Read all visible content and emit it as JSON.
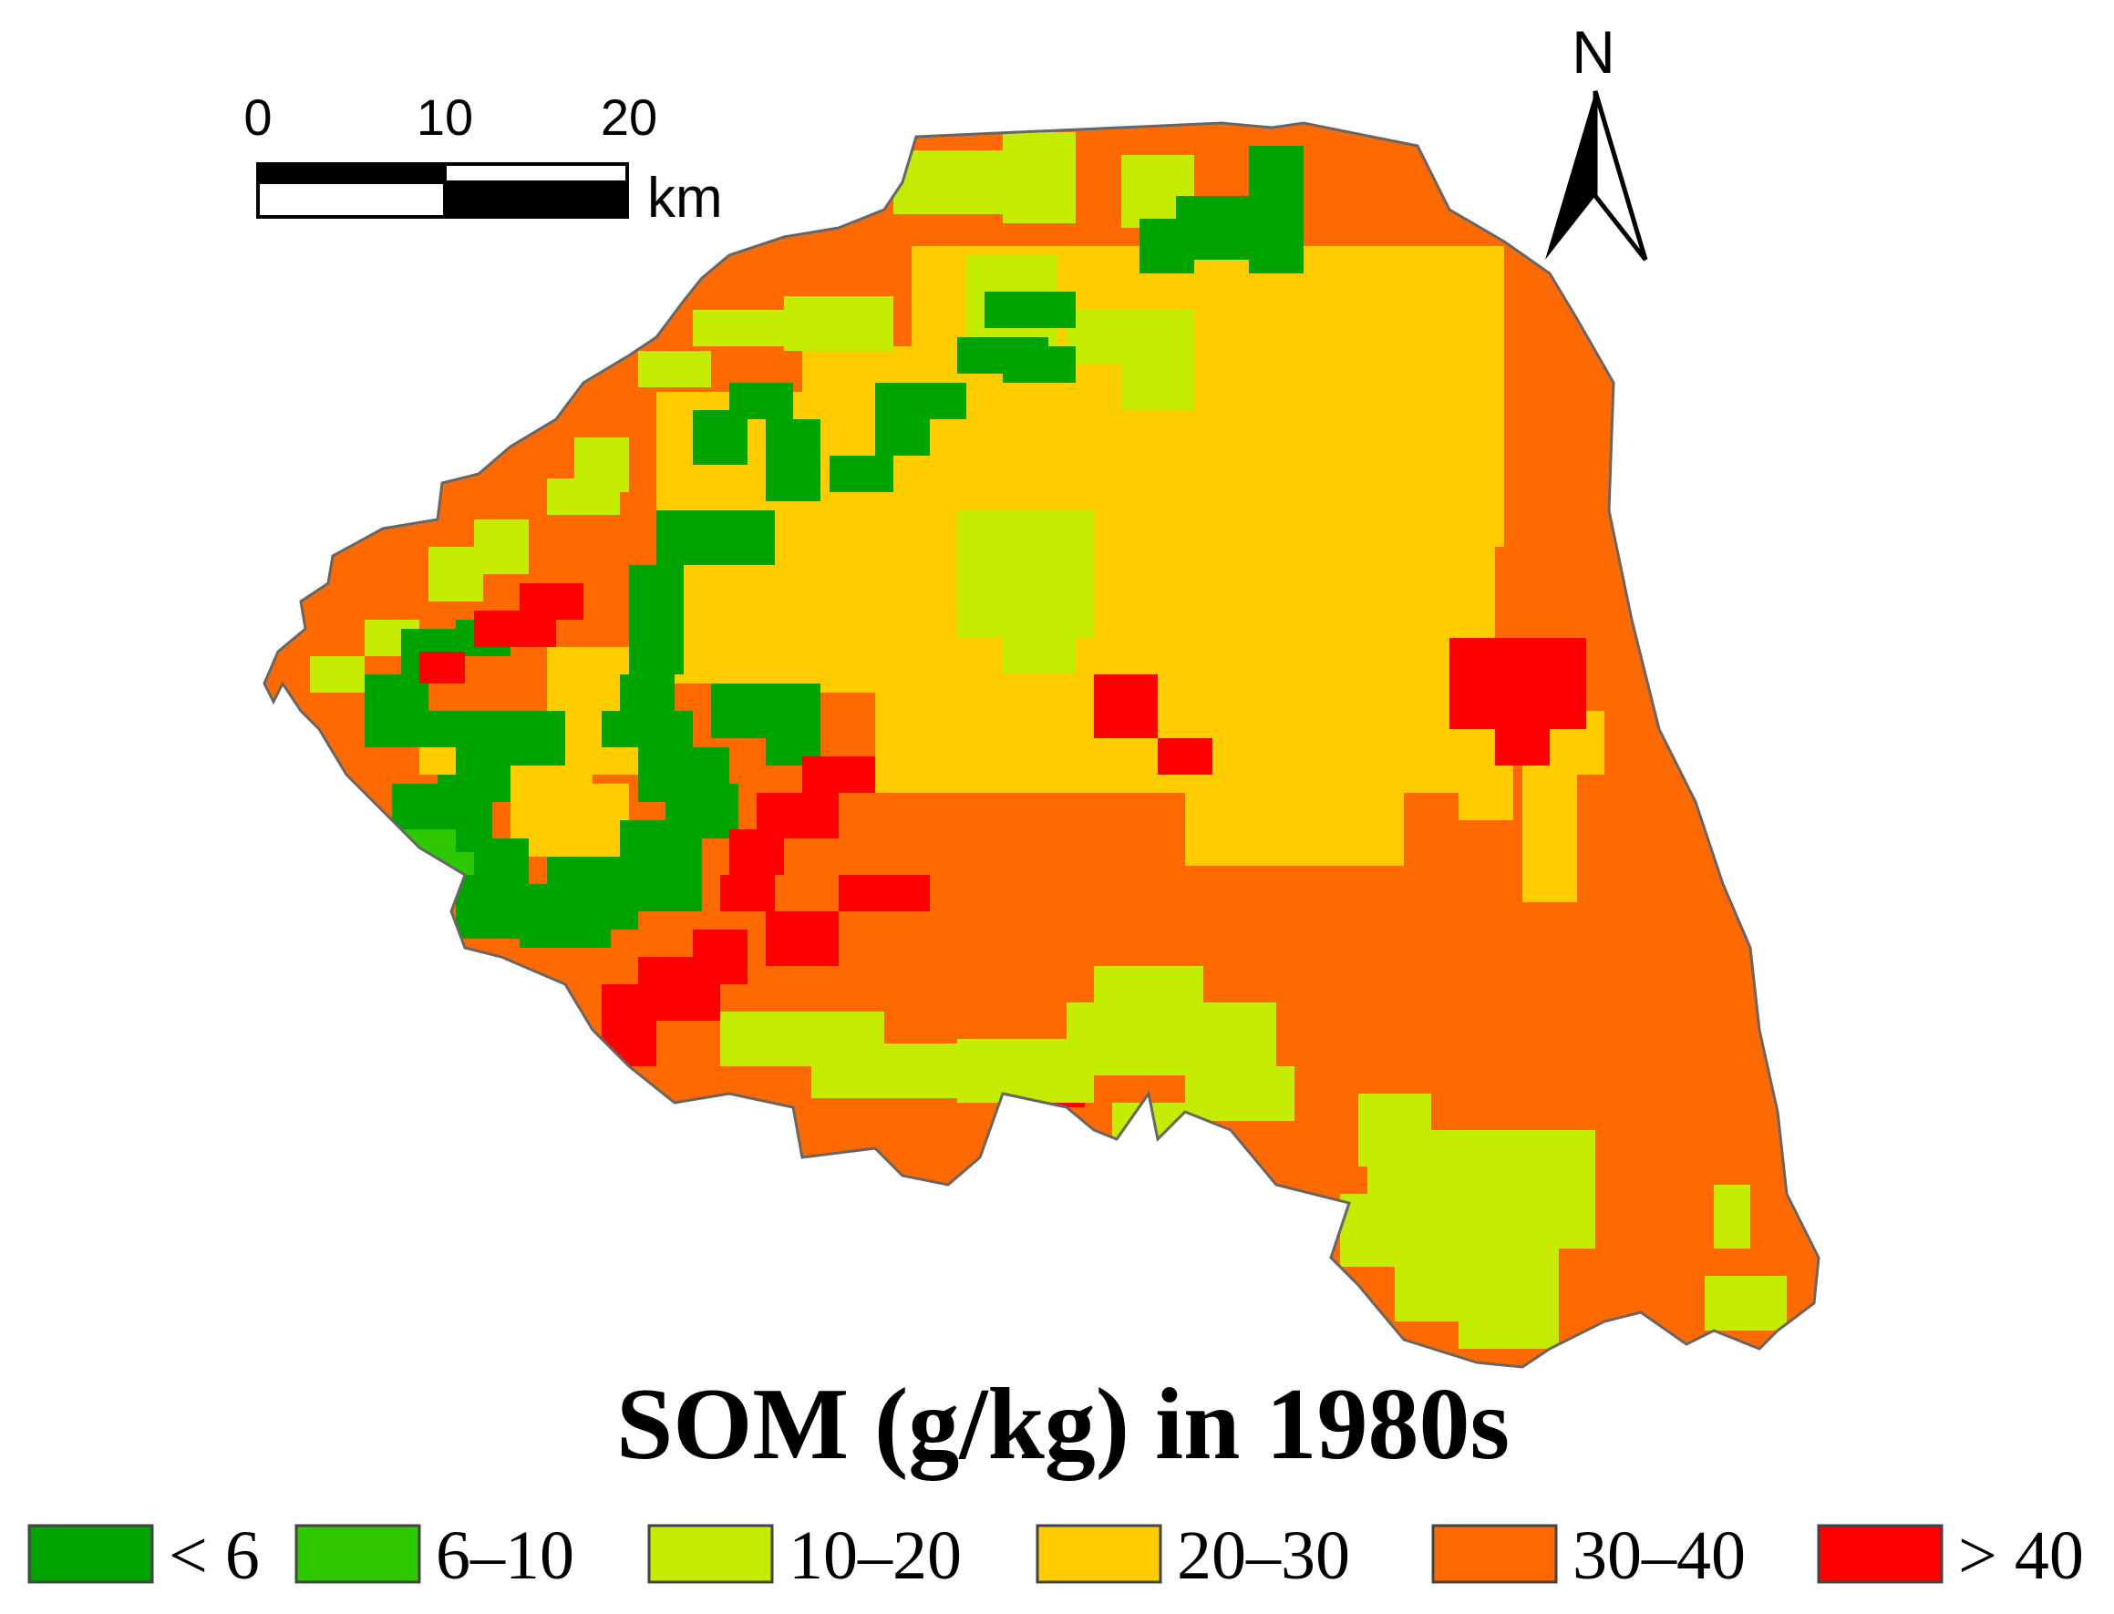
{
  "map": {
    "title": "SOM (g/kg) in 1980s",
    "north_label": "N",
    "scale_bar": {
      "ticks": [
        "0",
        "10",
        "20"
      ],
      "unit": "km"
    },
    "legend": [
      {
        "label": "< 6",
        "color": "#00a400"
      },
      {
        "label": "6–10",
        "color": "#2dc800"
      },
      {
        "label": "10–20",
        "color": "#c3ec00"
      },
      {
        "label": "20–30",
        "color": "#ffcc00"
      },
      {
        "label": "30–40",
        "color": "#ff6a00"
      },
      {
        "label": "> 40",
        "color": "#ff0000"
      }
    ],
    "outline_color": "#666666"
  }
}
